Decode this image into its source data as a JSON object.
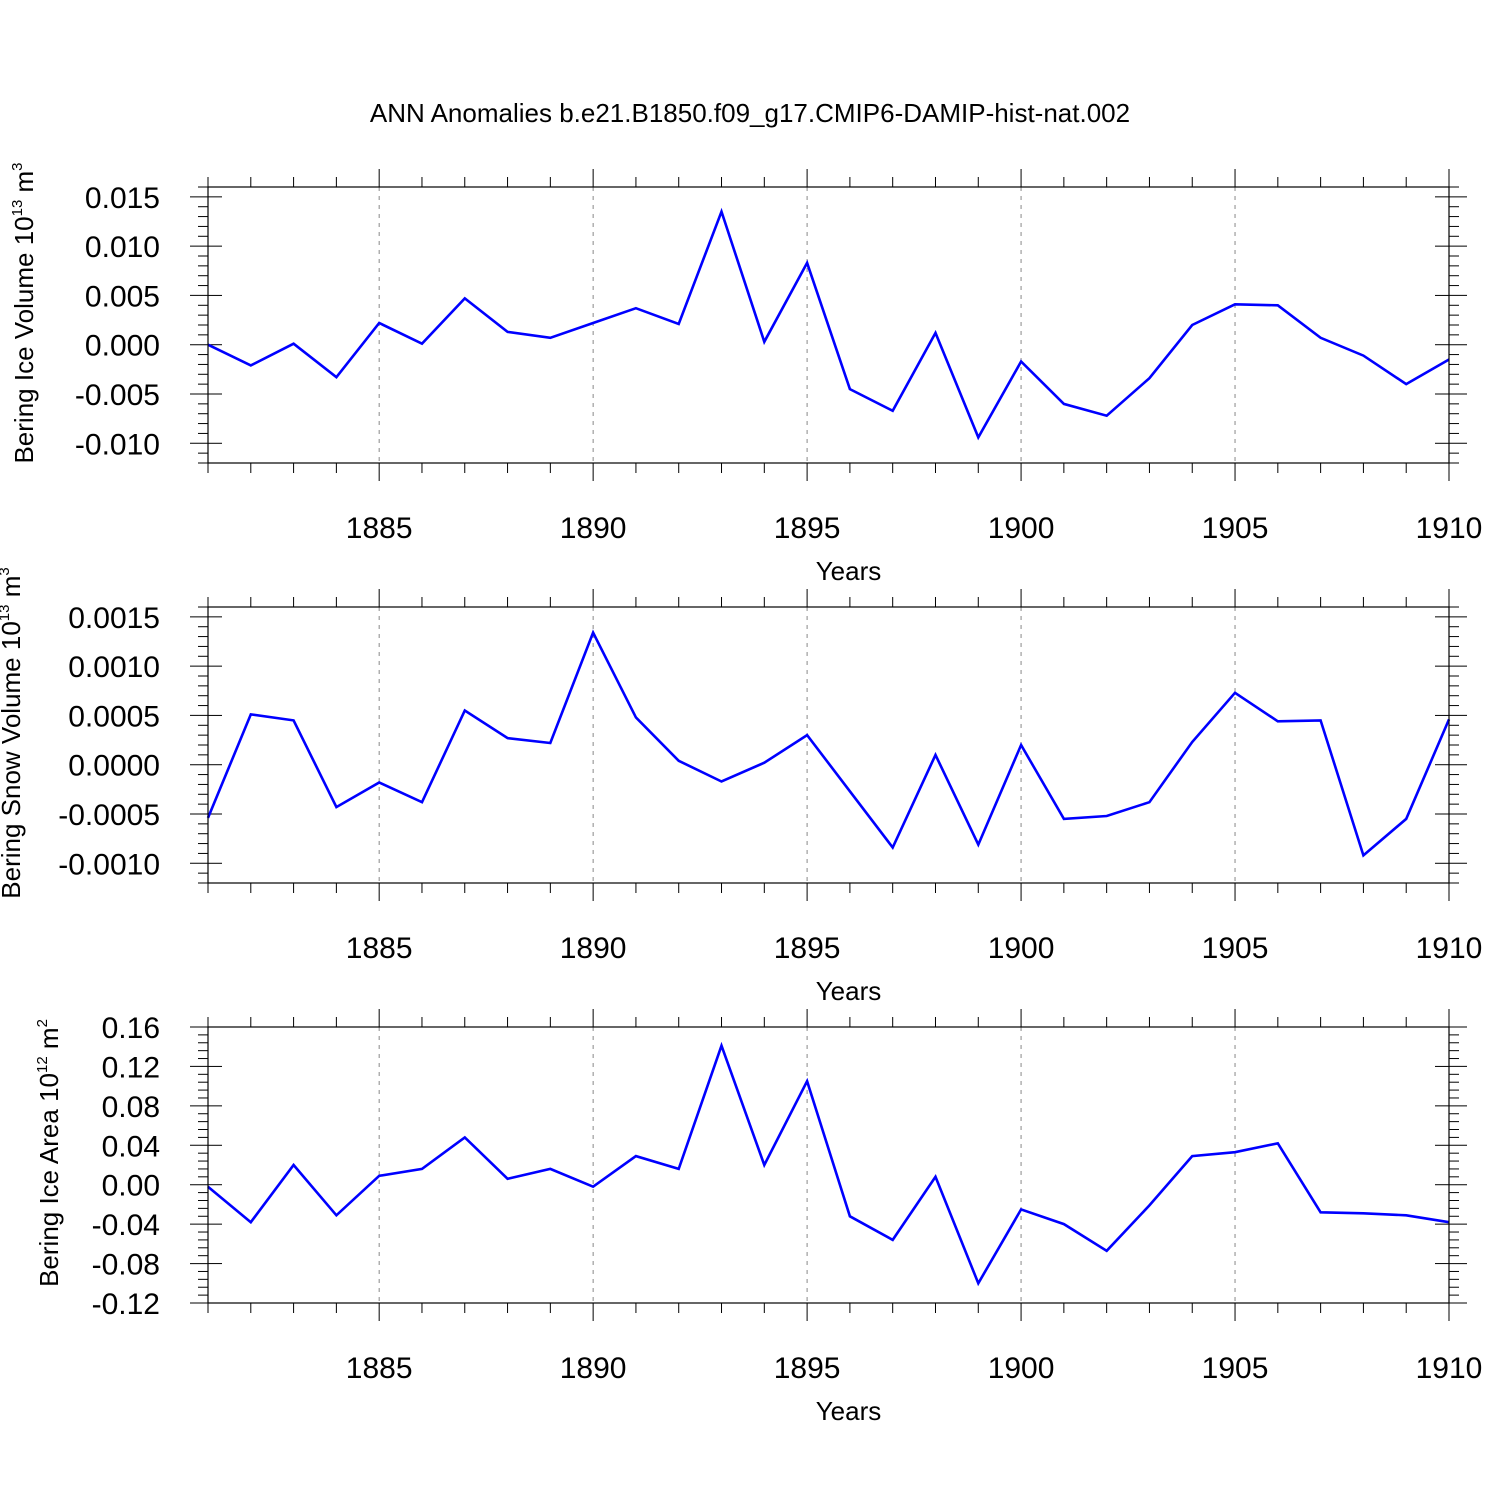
{
  "title": "ANN Anomalies b.e21.B1850.f09_g17.CMIP6-DAMIP-hist-nat.002",
  "colors": {
    "line": "#0000ff",
    "grid": "#888888",
    "frame": "#000000"
  },
  "chart_data": [
    {
      "type": "line",
      "ylabel": {
        "text": "Bering Ice Volume 10",
        "sup": "13",
        "unit": " m",
        "unit_sup": "3"
      },
      "xlabel": "Years",
      "xlim": [
        1881,
        1910
      ],
      "xticks": [
        1885,
        1890,
        1895,
        1900,
        1905,
        1910
      ],
      "ylim": [
        -0.012,
        0.016
      ],
      "yticks": [
        -0.01,
        -0.005,
        0.0,
        0.005,
        0.01,
        0.015
      ],
      "ytick_labels": [
        "-0.010",
        "-0.005",
        "0.000",
        "0.005",
        "0.010",
        "0.015"
      ],
      "grid": "vertical dashed at major x ticks",
      "x": [
        1881,
        1882,
        1883,
        1884,
        1885,
        1886,
        1887,
        1888,
        1889,
        1890,
        1891,
        1892,
        1893,
        1894,
        1895,
        1896,
        1897,
        1898,
        1899,
        1900,
        1901,
        1902,
        1903,
        1904,
        1905,
        1906,
        1907,
        1908,
        1909,
        1910
      ],
      "values": [
        0.0,
        -0.0021,
        0.0001,
        -0.0033,
        0.0022,
        0.0001,
        0.0047,
        0.0013,
        0.0007,
        0.0022,
        0.0037,
        0.0021,
        0.0135,
        0.0003,
        0.0083,
        -0.0045,
        -0.0067,
        0.0012,
        -0.0094,
        -0.0017,
        -0.006,
        -0.0072,
        -0.0034,
        0.002,
        0.0041,
        0.004,
        0.0007,
        -0.0011,
        -0.004,
        -0.0015
      ]
    },
    {
      "type": "line",
      "ylabel": {
        "text": "Bering Snow Volume 10",
        "sup": "13",
        "unit": " m",
        "unit_sup": "3"
      },
      "xlabel": "Years",
      "xlim": [
        1881,
        1910
      ],
      "xticks": [
        1885,
        1890,
        1895,
        1900,
        1905,
        1910
      ],
      "ylim": [
        -0.0012,
        0.0016
      ],
      "yticks": [
        -0.001,
        -0.0005,
        0.0,
        0.0005,
        0.001,
        0.0015
      ],
      "ytick_labels": [
        "-0.0010",
        "-0.0005",
        "0.0000",
        "0.0005",
        "0.0010",
        "0.0015"
      ],
      "grid": "vertical dashed at major x ticks",
      "x": [
        1881,
        1882,
        1883,
        1884,
        1885,
        1886,
        1887,
        1888,
        1889,
        1890,
        1891,
        1892,
        1893,
        1894,
        1895,
        1896,
        1897,
        1898,
        1899,
        1900,
        1901,
        1902,
        1903,
        1904,
        1905,
        1906,
        1907,
        1908,
        1909,
        1910
      ],
      "values": [
        -0.00054,
        0.00051,
        0.00045,
        -0.00043,
        -0.00018,
        -0.00038,
        0.00055,
        0.00027,
        0.00022,
        0.00134,
        0.00048,
        4e-05,
        -0.00017,
        2e-05,
        0.0003,
        -0.00027,
        -0.00084,
        0.0001,
        -0.00081,
        0.0002,
        -0.00055,
        -0.00052,
        -0.00038,
        0.00023,
        0.00073,
        0.00044,
        0.00045,
        -0.00092,
        -0.00055,
        0.00046
      ]
    },
    {
      "type": "line",
      "ylabel": {
        "text": "Bering Ice Area 10",
        "sup": "12",
        "unit": " m",
        "unit_sup": "2"
      },
      "xlabel": "Years",
      "xlim": [
        1881,
        1910
      ],
      "xticks": [
        1885,
        1890,
        1895,
        1900,
        1905,
        1910
      ],
      "ylim": [
        -0.12,
        0.16
      ],
      "yticks": [
        -0.12,
        -0.08,
        -0.04,
        0.0,
        0.04,
        0.08,
        0.12,
        0.16
      ],
      "ytick_labels": [
        "-0.12",
        "-0.08",
        "-0.04",
        "0.00",
        "0.04",
        "0.08",
        "0.12",
        "0.16"
      ],
      "grid": "vertical dashed at major x ticks",
      "x": [
        1881,
        1882,
        1883,
        1884,
        1885,
        1886,
        1887,
        1888,
        1889,
        1890,
        1891,
        1892,
        1893,
        1894,
        1895,
        1896,
        1897,
        1898,
        1899,
        1900,
        1901,
        1902,
        1903,
        1904,
        1905,
        1906,
        1907,
        1908,
        1909,
        1910
      ],
      "values": [
        -0.002,
        -0.038,
        0.02,
        -0.031,
        0.009,
        0.016,
        0.048,
        0.006,
        0.016,
        -0.002,
        0.029,
        0.016,
        0.141,
        0.02,
        0.105,
        -0.032,
        -0.056,
        0.008,
        -0.1,
        -0.025,
        -0.04,
        -0.067,
        -0.021,
        0.029,
        0.033,
        0.042,
        -0.028,
        -0.029,
        -0.031,
        -0.038
      ]
    }
  ]
}
